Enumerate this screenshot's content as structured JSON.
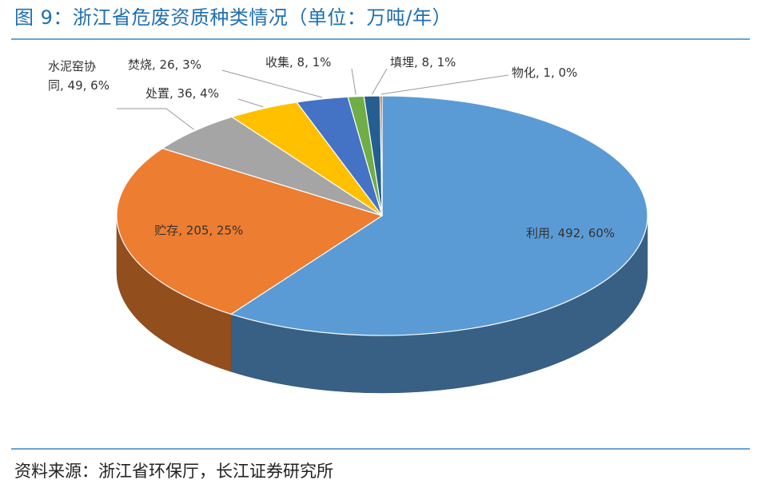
{
  "title": "图 9：浙江省危废资质种类情况（单位：万吨/年）",
  "source": "资料来源：浙江省环保厅，长江证券研究所",
  "chart_data": {
    "type": "pie",
    "style": "3d",
    "title": "图 9：浙江省危废资质种类情况（单位：万吨/年）",
    "slices": [
      {
        "label": "利用",
        "value": 492,
        "percent": "60%",
        "color": "#5b9bd5"
      },
      {
        "label": "贮存",
        "value": 205,
        "percent": "25%",
        "color": "#ed7d31"
      },
      {
        "label": "水泥窑协同",
        "value": 49,
        "percent": "6%",
        "color": "#a5a5a5"
      },
      {
        "label": "处置",
        "value": 36,
        "percent": "4%",
        "color": "#ffc000"
      },
      {
        "label": "焚烧",
        "value": 26,
        "percent": "3%",
        "color": "#4472c4"
      },
      {
        "label": "收集",
        "value": 8,
        "percent": "1%",
        "color": "#70ad47"
      },
      {
        "label": "填埋",
        "value": 8,
        "percent": "1%",
        "color": "#255e91"
      },
      {
        "label": "物化",
        "value": 1,
        "percent": "0%",
        "color": "#9e480e"
      }
    ],
    "data_labels": [
      "利用, 492, 60%",
      "贮存, 205, 25%",
      "水泥窑协\n同, 49, 6%",
      "处置, 36, 4%",
      "焚烧, 26, 3%",
      "收集, 8, 1%",
      "填埋, 8, 1%",
      "物化, 1, 0%"
    ]
  }
}
